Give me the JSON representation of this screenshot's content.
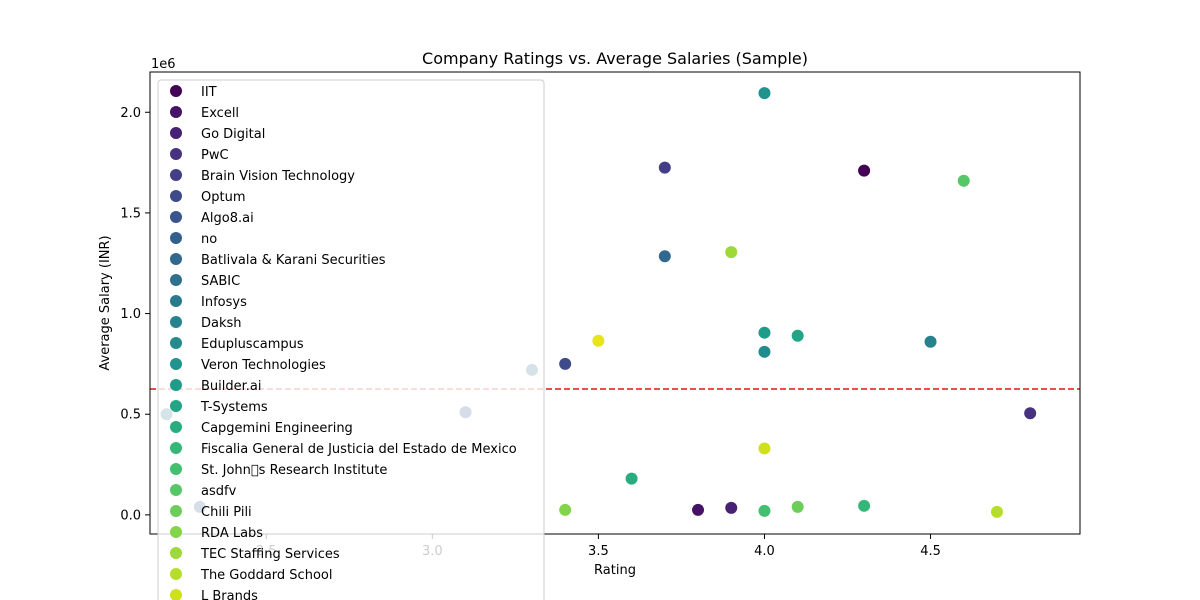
{
  "chart_data": {
    "type": "scatter",
    "title": "Company Ratings vs. Average Salaries (Sample)",
    "xlabel": "Rating",
    "ylabel": "Average Salary (INR)",
    "y_offset_label": "1e6",
    "xlim": [
      2.15,
      4.95
    ],
    "ylim": [
      -95000,
      2200000
    ],
    "xticks": [
      2.5,
      3.0,
      3.5,
      4.0,
      4.5
    ],
    "xtick_labels": [
      "2.5",
      "3.0",
      "3.5",
      "4.0",
      "4.5"
    ],
    "yticks": [
      0,
      500000,
      1000000,
      1500000,
      2000000
    ],
    "ytick_labels": [
      "0.0",
      "0.5",
      "1.0",
      "1.5",
      "2.0"
    ],
    "grid": false,
    "legend_position": "upper-left",
    "mean_line": {
      "y": 625000,
      "color": "#e8120f",
      "style": "dashed"
    },
    "series": [
      {
        "name": "IIT",
        "color": "#440154",
        "x": 4.3,
        "y": 1710000
      },
      {
        "name": "Excell",
        "color": "#461265",
        "x": 3.8,
        "y": 25000
      },
      {
        "name": "Go Digital",
        "color": "#472274",
        "x": 3.9,
        "y": 35000
      },
      {
        "name": "PwC",
        "color": "#46327e",
        "x": 4.8,
        "y": 505000
      },
      {
        "name": "Brain Vision Technology",
        "color": "#433e85",
        "x": 3.7,
        "y": 1725000
      },
      {
        "name": "Optum",
        "color": "#3e4a89",
        "x": 3.4,
        "y": 750000
      },
      {
        "name": "Algo8.ai",
        "color": "#39558c",
        "x": 3.1,
        "y": 510000
      },
      {
        "name": "no",
        "color": "#345f8d",
        "x": 2.3,
        "y": 40000
      },
      {
        "name": "Batlivala & Karani Securities",
        "color": "#31688e",
        "x": 3.7,
        "y": 1285000
      },
      {
        "name": "SABIC",
        "color": "#2d718e",
        "x": 3.3,
        "y": 720000
      },
      {
        "name": "Infosys",
        "color": "#2a7a8e",
        "x": 2.2,
        "y": 500000
      },
      {
        "name": "Daksh",
        "color": "#26838e",
        "x": 4.5,
        "y": 860000
      },
      {
        "name": "Edupluscampus",
        "color": "#238b8d",
        "x": 4.0,
        "y": 810000
      },
      {
        "name": "Veron Technologies",
        "color": "#20938c",
        "x": 4.0,
        "y": 2095000
      },
      {
        "name": "Builder.ai",
        "color": "#1f9c89",
        "x": 4.0,
        "y": 905000
      },
      {
        "name": "T-Systems",
        "color": "#21a585",
        "x": 4.1,
        "y": 890000
      },
      {
        "name": "Capgemini Engineering",
        "color": "#29ad80",
        "x": 3.6,
        "y": 180000
      },
      {
        "name": "Fiscalia General de Justicia del Estado de Mexico",
        "color": "#35b779",
        "x": 4.3,
        "y": 45000
      },
      {
        "name": "St. John\u0000s Research Institute",
        "color": "#44bf70",
        "x": 4.0,
        "y": 20000
      },
      {
        "name": "asdfv",
        "color": "#56c667",
        "x": 4.6,
        "y": 1660000
      },
      {
        "name": "Chili Pili",
        "color": "#6ccd5a",
        "x": 4.1,
        "y": 40000
      },
      {
        "name": "RDA Labs",
        "color": "#84d44b",
        "x": 3.4,
        "y": 25000
      },
      {
        "name": "TEC Staffing Services",
        "color": "#9dd93b",
        "x": 3.9,
        "y": 1305000
      },
      {
        "name": "The Goddard School",
        "color": "#b5de2b",
        "x": 4.7,
        "y": 15000
      },
      {
        "name": "L Brands",
        "color": "#cfe11c",
        "x": 4.0,
        "y": 330000
      },
      {
        "name": "",
        "color": "#e7e419",
        "x": 3.5,
        "y": 865000
      }
    ]
  }
}
